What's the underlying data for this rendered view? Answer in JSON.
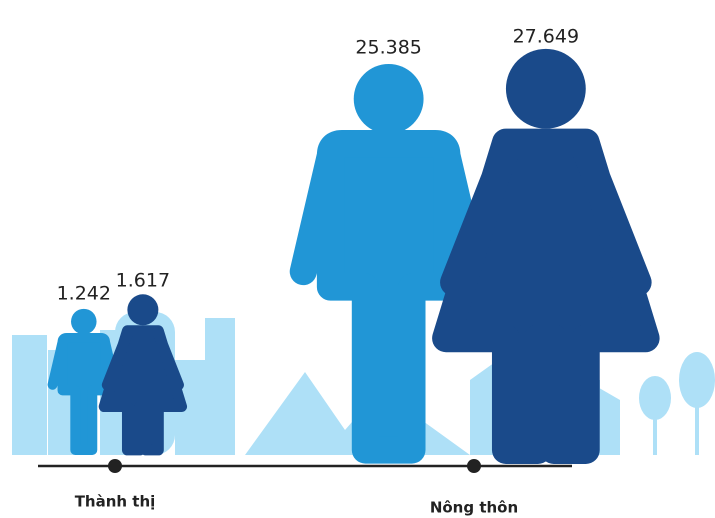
{
  "chart_data": {
    "type": "pictograph",
    "categories": [
      "Thành thị",
      "Nông thôn"
    ],
    "series": [
      {
        "color": "#2196d6",
        "values": [
          1242,
          25385
        ],
        "value_labels": [
          "1.242",
          "25.385"
        ]
      },
      {
        "color": "#1a4a8a",
        "values": [
          1617,
          27649
        ],
        "value_labels": [
          "1.617",
          "27.649"
        ]
      }
    ]
  }
}
